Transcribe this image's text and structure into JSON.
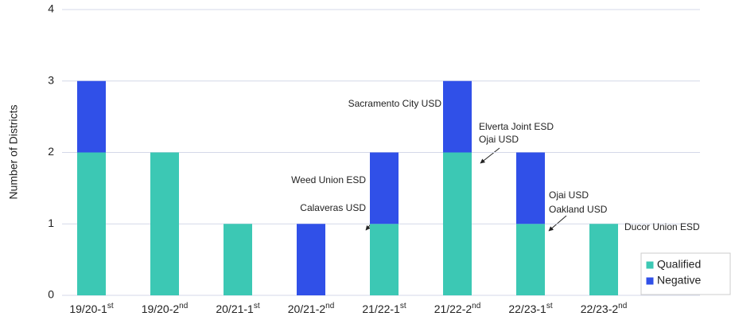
{
  "chart_data": {
    "type": "stacked_bar",
    "y_label": "Number of Districts",
    "categories": [
      "19/20-1st",
      "19/20-2nd",
      "20/21-1st",
      "20/21-2nd",
      "21/22-1st",
      "21/22-2nd",
      "22/23-1st",
      "22/23-2nd"
    ],
    "series": [
      {
        "name": "Qualified",
        "color": "#3cc8b4",
        "values": [
          2,
          2,
          1,
          0,
          1,
          2,
          1,
          1
        ]
      },
      {
        "name": "Negative",
        "color": "#3050e8",
        "values": [
          1,
          0,
          0,
          1,
          1,
          1,
          1,
          0
        ]
      }
    ],
    "ylim": [
      0,
      4
    ],
    "yticks": [
      0,
      1,
      2,
      3,
      4
    ],
    "grid": true,
    "legend": "lower right",
    "annotations": [
      "Sacramento City USD",
      "Elverta Joint ESD",
      "Ojai USD",
      "Weed Union ESD",
      "Calaveras USD",
      "Ojai USD",
      "Oakland USD",
      "Ducor Union ESD"
    ]
  }
}
